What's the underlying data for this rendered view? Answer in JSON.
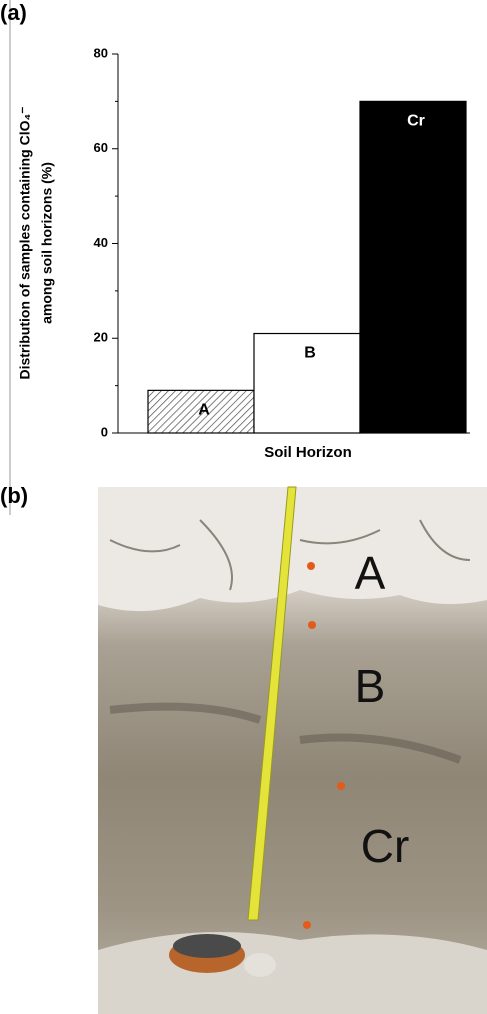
{
  "chart_data": {
    "type": "bar",
    "panel_labels": [
      "(a)",
      "(b)"
    ],
    "ylabel": [
      "Distribution of samples containing ClO₄⁻",
      "among soil horizons (%)"
    ],
    "xlabel": "Soil Horizon",
    "categories": [
      "A",
      "B",
      "Cr"
    ],
    "values": [
      9,
      21,
      70
    ],
    "colors": [
      "#ffffff",
      "#ffffff",
      "#000000"
    ],
    "patterns": [
      "hatch",
      "none",
      "none"
    ],
    "label_colors": [
      "#000000",
      "#000000",
      "#ffffff"
    ],
    "ylim": [
      0,
      80
    ],
    "yticks": [
      0,
      20,
      40,
      60,
      80
    ],
    "yminor_ticks": [
      10,
      30,
      50,
      70
    ],
    "photo_labels": [
      "A",
      "B",
      "Cr"
    ]
  }
}
